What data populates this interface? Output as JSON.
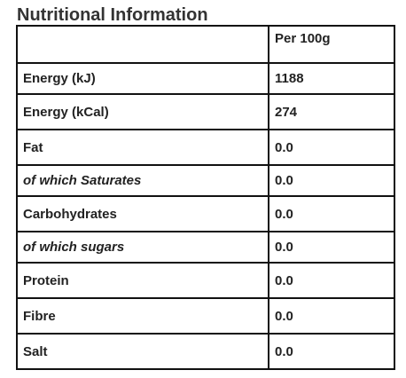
{
  "title": "Nutritional Information",
  "table": {
    "header": {
      "label": "",
      "value": "Per 100g"
    },
    "rows": [
      {
        "label": "Energy (kJ)",
        "value": "1188"
      },
      {
        "label": "Energy (kCal)",
        "value": "274"
      },
      {
        "label": "Fat",
        "value": "0.0"
      },
      {
        "label": "of which Saturates",
        "value": "0.0"
      },
      {
        "label": "Carbohydrates",
        "value": "0.0"
      },
      {
        "label": "of which sugars",
        "value": "0.0"
      },
      {
        "label": "Protein",
        "value": "0.0"
      },
      {
        "label": "Fibre",
        "value": "0.0"
      },
      {
        "label": "Salt",
        "value": "0.0"
      }
    ]
  }
}
